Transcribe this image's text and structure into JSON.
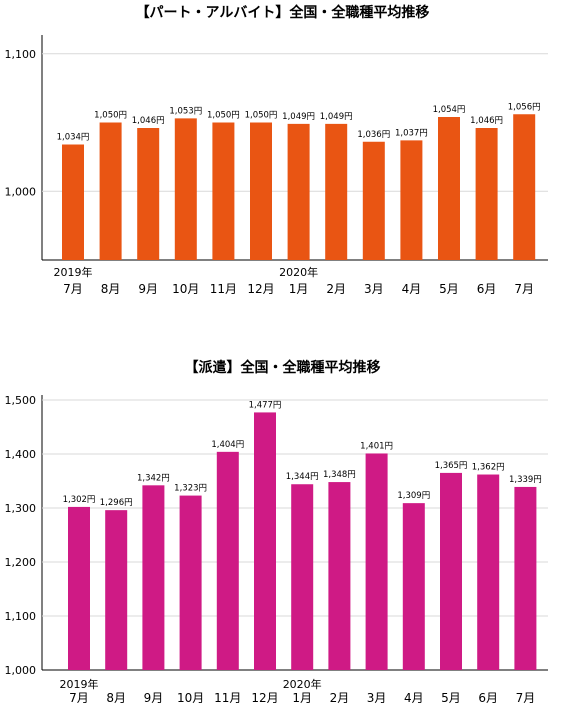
{
  "chart_data": [
    {
      "type": "bar",
      "title": "【パート・アルバイト】全国・全職種平均推移",
      "year_labels": [
        "2019年",
        "2020年"
      ],
      "categories": [
        "7月",
        "8月",
        "9月",
        "10月",
        "11月",
        "12月",
        "1月",
        "2月",
        "3月",
        "4月",
        "5月",
        "6月",
        "7月"
      ],
      "values": [
        1034,
        1050,
        1046,
        1053,
        1050,
        1050,
        1049,
        1049,
        1036,
        1037,
        1054,
        1046,
        1056
      ],
      "data_labels": [
        "1,034円",
        "1,050円",
        "1,046円",
        "1,053円",
        "1,050円",
        "1,050円",
        "1,049円",
        "1,049円",
        "1,036円",
        "1,037円",
        "1,054円",
        "1,046円",
        "1,056円"
      ],
      "y_ticks": [
        "1,100",
        "1,000"
      ],
      "y_tick_values": [
        1100,
        1000
      ],
      "ylim": [
        950,
        1110
      ],
      "bar_color": "#E95513",
      "grid": true
    },
    {
      "type": "bar",
      "title": "【派遣】全国・全職種平均推移",
      "year_labels": [
        "2019年",
        "2020年"
      ],
      "categories": [
        "7月",
        "8月",
        "9月",
        "10月",
        "11月",
        "12月",
        "1月",
        "2月",
        "3月",
        "4月",
        "5月",
        "6月",
        "7月"
      ],
      "values": [
        1302,
        1296,
        1342,
        1323,
        1404,
        1477,
        1344,
        1348,
        1401,
        1309,
        1365,
        1362,
        1339
      ],
      "data_labels": [
        "1,302円",
        "1,296円",
        "1,342円",
        "1,323円",
        "1,404円",
        "1,477円",
        "1,344円",
        "1,348円",
        "1,401円",
        "1,309円",
        "1,365円",
        "1,362円",
        "1,339円"
      ],
      "y_ticks": [
        "1,000",
        "1,100",
        "1,200",
        "1,300",
        "1,400",
        "1,500"
      ],
      "y_tick_values": [
        1000,
        1100,
        1200,
        1300,
        1400,
        1500
      ],
      "ylim": [
        1000,
        1500
      ],
      "bar_color": "#CF1A85",
      "grid": true
    }
  ]
}
